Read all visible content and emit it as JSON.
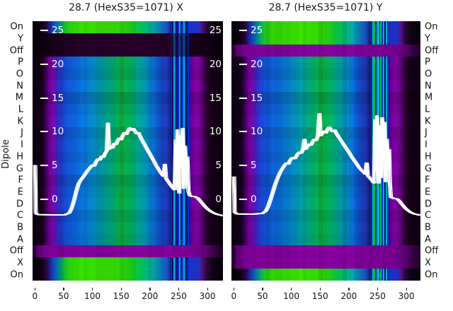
{
  "labels": {
    "ylabel": "Dipole",
    "row_labels": [
      "On",
      "Y",
      "Off",
      "P",
      "O",
      "N",
      "M",
      "L",
      "K",
      "J",
      "I",
      "H",
      "G",
      "F",
      "E",
      "D",
      "C",
      "B",
      "A",
      "Off",
      "X",
      "On"
    ]
  },
  "chart_data": [
    {
      "type": "heatmap+line",
      "title": "28.7 (HexS35=1071) X",
      "rows": [
        "On",
        "Y",
        "Off",
        "P",
        "O",
        "N",
        "M",
        "L",
        "K",
        "J",
        "I",
        "H",
        "G",
        "F",
        "E",
        "D",
        "C",
        "B",
        "A",
        "Off",
        "X",
        "On"
      ],
      "row_render": [
        "green",
        "dark",
        "dark",
        "main",
        "main",
        "main",
        "main",
        "main",
        "main",
        "main",
        "main",
        "main",
        "main",
        "main",
        "main",
        "main",
        "main",
        "main",
        "main",
        "purple",
        "green",
        "green"
      ],
      "x_ticks": [
        0,
        50,
        100,
        150,
        200,
        250,
        300
      ],
      "inner_y_ticks": [
        25,
        20,
        15,
        10,
        5,
        0
      ],
      "inner_y_tick_sides": "both",
      "noise_stripes": [
        {
          "x": 236,
          "w": 2,
          "c": "#0426e0"
        },
        {
          "x": 238,
          "w": 2,
          "c": "#041070"
        },
        {
          "x": 240,
          "w": 3,
          "c": "#00b4cc"
        },
        {
          "x": 243,
          "w": 2,
          "c": "#0a30d8"
        },
        {
          "x": 245,
          "w": 2,
          "c": "#031060"
        },
        {
          "x": 247,
          "w": 3,
          "c": "#0830e0"
        },
        {
          "x": 250,
          "w": 2,
          "c": "#00a8c4"
        },
        {
          "x": 252,
          "w": 3,
          "c": "#051878"
        },
        {
          "x": 255,
          "w": 2,
          "c": "#0a38e0"
        },
        {
          "x": 257,
          "w": 3,
          "c": "#00b4cc"
        },
        {
          "x": 260,
          "w": 2,
          "c": "#0828c8"
        },
        {
          "x": 262,
          "w": 3,
          "c": "#041068"
        },
        {
          "x": 265,
          "w": 2,
          "c": "#0830d8"
        }
      ],
      "line_series": {
        "name": "white-profile",
        "points": [
          [
            0,
            5.0
          ],
          [
            0.5,
            5.0
          ],
          [
            1.5,
            -2.0
          ],
          [
            4,
            -2.25
          ],
          [
            30,
            -2.3
          ],
          [
            52,
            -2.3
          ],
          [
            60,
            -2.0
          ],
          [
            64,
            -1.3
          ],
          [
            68,
            -0.2
          ],
          [
            72,
            1.2
          ],
          [
            76,
            2.3
          ],
          [
            80,
            2.9
          ],
          [
            84,
            3.3
          ],
          [
            88,
            3.8
          ],
          [
            92,
            4.3
          ],
          [
            96,
            4.7
          ],
          [
            100,
            5.1
          ],
          [
            103,
            4.9
          ],
          [
            106,
            5.5
          ],
          [
            110,
            6.0
          ],
          [
            113,
            5.8
          ],
          [
            116,
            6.4
          ],
          [
            119,
            6.2
          ],
          [
            122,
            6.8
          ],
          [
            125,
            7.2
          ],
          [
            127,
            11.3
          ],
          [
            129,
            7.4
          ],
          [
            132,
            7.8
          ],
          [
            135,
            7.6
          ],
          [
            138,
            8.3
          ],
          [
            141,
            8.1
          ],
          [
            144,
            8.7
          ],
          [
            147,
            9.1
          ],
          [
            150,
            8.8
          ],
          [
            153,
            9.5
          ],
          [
            156,
            9.9
          ],
          [
            159,
            9.6
          ],
          [
            162,
            10.2
          ],
          [
            165,
            10.6
          ],
          [
            168,
            10.2
          ],
          [
            171,
            10.5
          ],
          [
            174,
            10.1
          ],
          [
            177,
            9.7
          ],
          [
            180,
            9.9
          ],
          [
            183,
            9.3
          ],
          [
            186,
            8.8
          ],
          [
            190,
            8.2
          ],
          [
            194,
            7.6
          ],
          [
            198,
            7.0
          ],
          [
            202,
            6.4
          ],
          [
            206,
            5.8
          ],
          [
            211,
            5.0
          ],
          [
            216,
            4.3
          ],
          [
            220,
            3.8
          ],
          [
            224,
            3.4
          ],
          [
            226,
            5.2
          ],
          [
            228,
            3.1
          ],
          [
            232,
            2.6
          ],
          [
            236,
            2.1
          ],
          [
            240,
            1.7
          ],
          [
            243,
            1.4
          ],
          [
            245,
            8.8
          ],
          [
            246.5,
            1.9
          ],
          [
            248,
            10.3
          ],
          [
            249.5,
            3.4
          ],
          [
            251,
            0.9
          ],
          [
            253,
            9.4
          ],
          [
            255,
            4.8
          ],
          [
            257,
            10.5
          ],
          [
            259,
            1.6
          ],
          [
            261,
            7.9
          ],
          [
            263,
            2.8
          ],
          [
            265,
            6.3
          ],
          [
            267,
            1.2
          ],
          [
            269,
            0.6
          ],
          [
            272,
            0.45
          ],
          [
            278,
            0.4
          ],
          [
            283,
            0.2
          ],
          [
            287,
            -0.2
          ],
          [
            291,
            -0.6
          ],
          [
            296,
            -1.1
          ],
          [
            301,
            -1.5
          ],
          [
            307,
            -1.85
          ],
          [
            313,
            -2.1
          ],
          [
            320,
            -2.3
          ],
          [
            330,
            -2.45
          ]
        ]
      }
    },
    {
      "type": "heatmap+line",
      "title": "28.7 (HexS35=1071) Y",
      "rows": [
        "On",
        "Y",
        "Off",
        "P",
        "O",
        "N",
        "M",
        "L",
        "K",
        "J",
        "I",
        "H",
        "G",
        "F",
        "E",
        "D",
        "C",
        "B",
        "A",
        "Off",
        "X",
        "On"
      ],
      "row_render": [
        "green",
        "green",
        "purple",
        "main",
        "main",
        "main",
        "main",
        "main",
        "main",
        "main",
        "main",
        "main",
        "main",
        "main",
        "main",
        "main",
        "main",
        "main",
        "main",
        "purple",
        "purple",
        "green"
      ],
      "x_ticks": [
        0,
        50,
        100,
        150,
        200,
        250,
        300
      ],
      "inner_y_ticks": [
        25,
        20,
        15,
        10,
        5,
        0
      ],
      "inner_y_tick_sides": "left",
      "noise_stripes": [
        {
          "x": 238,
          "w": 2,
          "c": "#0426e0"
        },
        {
          "x": 240,
          "w": 3,
          "c": "#00b899"
        },
        {
          "x": 243,
          "w": 2,
          "c": "#00b43c"
        },
        {
          "x": 245,
          "w": 2,
          "c": "#0a30d8"
        },
        {
          "x": 247,
          "w": 2,
          "c": "#00a050"
        },
        {
          "x": 249,
          "w": 3,
          "c": "#00b4cc"
        },
        {
          "x": 252,
          "w": 2,
          "c": "#031060"
        },
        {
          "x": 254,
          "w": 2,
          "c": "#00c060"
        },
        {
          "x": 256,
          "w": 3,
          "c": "#0830e0"
        },
        {
          "x": 259,
          "w": 2,
          "c": "#00b4cc"
        },
        {
          "x": 261,
          "w": 2,
          "c": "#041068"
        },
        {
          "x": 263,
          "w": 3,
          "c": "#00a8c4"
        },
        {
          "x": 266,
          "w": 2,
          "c": "#0830d8"
        }
      ],
      "line_series": {
        "name": "white-profile",
        "points": [
          [
            0,
            3.3
          ],
          [
            0.5,
            3.3
          ],
          [
            1.5,
            -1.9
          ],
          [
            5,
            -2.15
          ],
          [
            30,
            -2.2
          ],
          [
            50,
            -2.1
          ],
          [
            56,
            -1.7
          ],
          [
            60,
            -1.0
          ],
          [
            64,
            0.0
          ],
          [
            68,
            1.1
          ],
          [
            72,
            2.2
          ],
          [
            76,
            3.1
          ],
          [
            80,
            3.9
          ],
          [
            84,
            4.5
          ],
          [
            88,
            5.0
          ],
          [
            92,
            5.4
          ],
          [
            95,
            5.2
          ],
          [
            98,
            5.8
          ],
          [
            102,
            6.2
          ],
          [
            106,
            6.0
          ],
          [
            110,
            6.6
          ],
          [
            114,
            7.0
          ],
          [
            117,
            6.8
          ],
          [
            120,
            7.3
          ],
          [
            123,
            8.9
          ],
          [
            125,
            7.4
          ],
          [
            128,
            7.8
          ],
          [
            131,
            8.2
          ],
          [
            134,
            8.0
          ],
          [
            137,
            8.5
          ],
          [
            140,
            8.9
          ],
          [
            143,
            8.7
          ],
          [
            146,
            9.3
          ],
          [
            149,
            12.7
          ],
          [
            151,
            9.4
          ],
          [
            154,
            9.8
          ],
          [
            157,
            10.1
          ],
          [
            160,
            9.8
          ],
          [
            163,
            10.4
          ],
          [
            166,
            10.7
          ],
          [
            169,
            10.3
          ],
          [
            172,
            10.0
          ],
          [
            175,
            10.3
          ],
          [
            178,
            9.8
          ],
          [
            181,
            9.4
          ],
          [
            184,
            9.0
          ],
          [
            188,
            8.5
          ],
          [
            192,
            8.0
          ],
          [
            196,
            7.5
          ],
          [
            200,
            7.0
          ],
          [
            205,
            6.3
          ],
          [
            210,
            5.7
          ],
          [
            214,
            5.2
          ],
          [
            218,
            4.7
          ],
          [
            222,
            4.3
          ],
          [
            226,
            4.0
          ],
          [
            229,
            3.7
          ],
          [
            231,
            5.4
          ],
          [
            233,
            3.5
          ],
          [
            237,
            3.1
          ],
          [
            241,
            2.7
          ],
          [
            244,
            2.4
          ],
          [
            246,
            11.8
          ],
          [
            247.5,
            4.1
          ],
          [
            249,
            12.4
          ],
          [
            250.5,
            5.2
          ],
          [
            252,
            2.4
          ],
          [
            254,
            10.9
          ],
          [
            256,
            3.2
          ],
          [
            258,
            12.1
          ],
          [
            260,
            6.1
          ],
          [
            262,
            11.4
          ],
          [
            264,
            2.6
          ],
          [
            266,
            8.9
          ],
          [
            268,
            4.4
          ],
          [
            270,
            7.4
          ],
          [
            271.5,
            2.2
          ],
          [
            273,
            0.3
          ],
          [
            278,
            0.15
          ],
          [
            284,
            0.05
          ],
          [
            288,
            -0.25
          ],
          [
            292,
            -0.7
          ],
          [
            297,
            -1.2
          ],
          [
            302,
            -1.6
          ],
          [
            308,
            -1.95
          ],
          [
            315,
            -2.2
          ],
          [
            322,
            -2.3
          ],
          [
            330,
            -2.4
          ]
        ]
      }
    }
  ],
  "style": {
    "line_color": "#ffffff",
    "tick_text_color": "#ffffff",
    "axis_text_color": "#111111",
    "trace_offsets": [
      0,
      1.5,
      -1.5,
      3,
      -3
    ],
    "row_jitter": [
      1.02,
      0.96,
      1.06,
      0.9,
      1.0,
      1.08,
      0.95,
      1.03,
      0.98,
      1.06,
      0.92,
      1.0,
      1.05,
      0.94,
      1.01,
      0.97
    ],
    "profiles": {
      "main": [
        [
          0,
          "#0d0010"
        ],
        [
          13,
          "#16001c"
        ],
        [
          19,
          "#3c005c"
        ],
        [
          25,
          "#6f008c"
        ],
        [
          31,
          "#6d08a0"
        ],
        [
          38,
          "#3b20b4"
        ],
        [
          46,
          "#1e3cc6"
        ],
        [
          56,
          "#1150cc"
        ],
        [
          72,
          "#0a62d0"
        ],
        [
          92,
          "#0876c6"
        ],
        [
          110,
          "#008cac"
        ],
        [
          126,
          "#009a82"
        ],
        [
          140,
          "#02a25e"
        ],
        [
          150,
          "#0da33c"
        ],
        [
          158,
          "#04a647"
        ],
        [
          168,
          "#00a25c"
        ],
        [
          180,
          "#009788"
        ],
        [
          194,
          "#0085ae"
        ],
        [
          208,
          "#0a62c8"
        ],
        [
          220,
          "#1546c4"
        ],
        [
          230,
          "#1d30aa"
        ],
        [
          235,
          "#14207c"
        ],
        [
          267,
          "#14207c"
        ],
        [
          270,
          "#56068a"
        ],
        [
          279,
          "#7c00a0"
        ],
        [
          289,
          "#62047e"
        ],
        [
          297,
          "#2c0032"
        ],
        [
          306,
          "#150017"
        ],
        [
          330,
          "#0a000c"
        ]
      ],
      "green": [
        [
          0,
          "#06000a"
        ],
        [
          12,
          "#100014"
        ],
        [
          20,
          "#2a0640"
        ],
        [
          27,
          "#1c2aa0"
        ],
        [
          35,
          "#0a5ab6"
        ],
        [
          43,
          "#009478"
        ],
        [
          50,
          "#12ba38"
        ],
        [
          60,
          "#2ace0c"
        ],
        [
          72,
          "#33d800"
        ],
        [
          115,
          "#38dc00"
        ],
        [
          145,
          "#30d402"
        ],
        [
          165,
          "#1ec610"
        ],
        [
          183,
          "#02ba50"
        ],
        [
          202,
          "#00a890"
        ],
        [
          218,
          "#0a80c2"
        ],
        [
          230,
          "#1c48c2"
        ],
        [
          235,
          "#16267e"
        ],
        [
          262,
          "#16267e"
        ],
        [
          264,
          "#1a34c4"
        ],
        [
          284,
          "#1c30be"
        ],
        [
          290,
          "#521486"
        ],
        [
          298,
          "#2a063c"
        ],
        [
          308,
          "#0e0412"
        ],
        [
          330,
          "#06000a"
        ]
      ],
      "dark": [
        [
          0,
          "#080009"
        ],
        [
          25,
          "#130015"
        ],
        [
          50,
          "#1c001e"
        ],
        [
          80,
          "#230025"
        ],
        [
          140,
          "#270029"
        ],
        [
          210,
          "#240026"
        ],
        [
          255,
          "#1e0020"
        ],
        [
          285,
          "#150017"
        ],
        [
          315,
          "#0b000d"
        ],
        [
          330,
          "#080009"
        ]
      ],
      "purple": [
        [
          0,
          "#2a0033"
        ],
        [
          4,
          "#5c0070"
        ],
        [
          11,
          "#65007c"
        ],
        [
          18,
          "#780090"
        ],
        [
          55,
          "#7e0096"
        ],
        [
          150,
          "#83009b"
        ],
        [
          235,
          "#7e0096"
        ],
        [
          275,
          "#770090"
        ],
        [
          298,
          "#5c0072"
        ],
        [
          312,
          "#33003e"
        ],
        [
          330,
          "#150018"
        ]
      ]
    }
  }
}
